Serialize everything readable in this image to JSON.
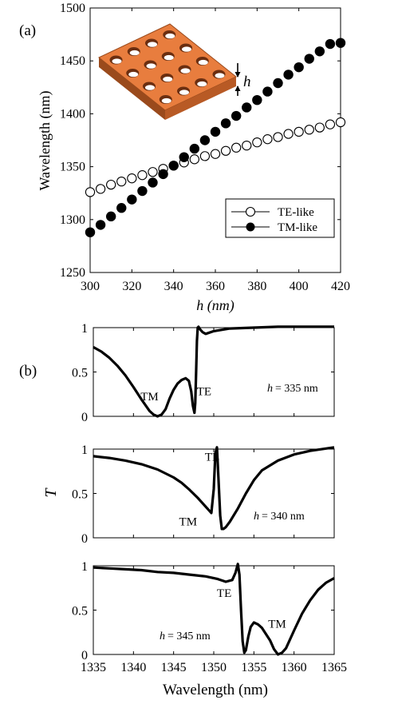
{
  "panel_labels": [
    "(a)",
    "(b)"
  ],
  "chart_data": [
    {
      "type": "scatter",
      "panel": "(a)",
      "xlabel": "h (nm)",
      "ylabel": "Wavelength (nm)",
      "xlim": [
        300,
        420
      ],
      "ylim": [
        1250,
        1500
      ],
      "xticks": [
        300,
        320,
        340,
        360,
        380,
        400,
        420
      ],
      "yticks": [
        1250,
        1300,
        1350,
        1400,
        1450,
        1500
      ],
      "legend_position": "bottom-right",
      "inset_label": "h",
      "series": [
        {
          "name": "TE-like",
          "marker": "open-circle",
          "x": [
            300,
            305,
            310,
            315,
            320,
            325,
            330,
            335,
            340,
            345,
            350,
            355,
            360,
            365,
            370,
            375,
            380,
            385,
            390,
            395,
            400,
            405,
            410,
            415,
            420
          ],
          "y": [
            1326,
            1329,
            1333,
            1336,
            1339,
            1342,
            1345,
            1348,
            1351,
            1354,
            1357,
            1360,
            1362,
            1365,
            1368,
            1370,
            1373,
            1376,
            1378,
            1381,
            1383,
            1385,
            1387,
            1390,
            1392
          ]
        },
        {
          "name": "TM-like",
          "marker": "filled-circle",
          "x": [
            300,
            305,
            310,
            315,
            320,
            325,
            330,
            335,
            340,
            345,
            350,
            355,
            360,
            365,
            370,
            375,
            380,
            385,
            390,
            395,
            400,
            405,
            410,
            415,
            420
          ],
          "y": [
            1288,
            1295,
            1303,
            1311,
            1319,
            1327,
            1335,
            1343,
            1351,
            1359,
            1367,
            1375,
            1383,
            1391,
            1398,
            1406,
            1413,
            1421,
            1429,
            1437,
            1444,
            1452,
            1459,
            1466,
            1467
          ]
        }
      ]
    },
    {
      "type": "line",
      "panel": "(b)",
      "ylabel": "T",
      "xlim": [
        1335,
        1365
      ],
      "ylim": [
        0,
        1
      ],
      "yticks": [
        0,
        0.5,
        1
      ],
      "annotation_prefix": "h",
      "annotation_value": "= 335 nm",
      "labels": [
        {
          "text": "TM",
          "x": 1342.0,
          "y": 0.18
        },
        {
          "text": "TE",
          "x": 1348.8,
          "y": 0.24
        }
      ],
      "x": [
        1335,
        1336,
        1337,
        1338,
        1339,
        1340,
        1341,
        1342,
        1342.5,
        1343,
        1343.5,
        1344,
        1344.5,
        1345,
        1345.5,
        1346,
        1346.5,
        1346.9,
        1347.2,
        1347.4,
        1347.6,
        1347.7,
        1347.8,
        1347.9,
        1348,
        1348.1,
        1348.3,
        1348.6,
        1349,
        1350,
        1352,
        1355,
        1358,
        1361,
        1365
      ],
      "y": [
        0.78,
        0.73,
        0.66,
        0.57,
        0.46,
        0.33,
        0.19,
        0.06,
        0.02,
        0.0,
        0.02,
        0.08,
        0.2,
        0.3,
        0.37,
        0.41,
        0.43,
        0.4,
        0.28,
        0.12,
        0.04,
        0.15,
        0.5,
        0.85,
        1.0,
        1.01,
        0.98,
        0.95,
        0.93,
        0.96,
        0.99,
        1.0,
        1.01,
        1.01,
        1.01
      ]
    },
    {
      "type": "line",
      "panel": "(b)",
      "ylabel": "T",
      "xlim": [
        1335,
        1365
      ],
      "ylim": [
        0,
        1
      ],
      "yticks": [
        0,
        0.5,
        1
      ],
      "annotation_prefix": "h",
      "annotation_value": "= 340 nm",
      "labels": [
        {
          "text": "TE",
          "x": 1349.8,
          "y": 0.87
        },
        {
          "text": "TM",
          "x": 1346.8,
          "y": 0.14
        }
      ],
      "x": [
        1335,
        1337,
        1339,
        1341,
        1343,
        1345,
        1346,
        1347,
        1348,
        1349,
        1349.7,
        1350.0,
        1350.2,
        1350.4,
        1350.6,
        1350.8,
        1351,
        1351.2,
        1351.5,
        1352,
        1353,
        1354,
        1355,
        1356,
        1358,
        1360,
        1362,
        1365
      ],
      "y": [
        0.92,
        0.9,
        0.87,
        0.83,
        0.77,
        0.68,
        0.62,
        0.54,
        0.45,
        0.35,
        0.28,
        0.55,
        0.95,
        1.02,
        0.65,
        0.25,
        0.1,
        0.1,
        0.12,
        0.18,
        0.33,
        0.5,
        0.65,
        0.76,
        0.87,
        0.94,
        0.98,
        1.02
      ]
    },
    {
      "type": "line",
      "panel": "(b)",
      "xlabel": "Wavelength (nm)",
      "ylabel": "T",
      "xlim": [
        1335,
        1365
      ],
      "ylim": [
        0,
        1
      ],
      "yticks": [
        0,
        0.5,
        1
      ],
      "xticks": [
        1335,
        1340,
        1345,
        1350,
        1355,
        1360,
        1365
      ],
      "annotation_prefix": "h",
      "annotation_value": "= 345 nm",
      "labels": [
        {
          "text": "TE",
          "x": 1351.3,
          "y": 0.65
        },
        {
          "text": "TM",
          "x": 1357.9,
          "y": 0.3
        }
      ],
      "x": [
        1335,
        1337,
        1339,
        1341,
        1343,
        1345,
        1347,
        1349,
        1350.5,
        1351.5,
        1352.3,
        1352.7,
        1353.0,
        1353.2,
        1353.4,
        1353.6,
        1353.8,
        1354.0,
        1354.3,
        1354.6,
        1355,
        1355.5,
        1356,
        1357,
        1357.5,
        1358,
        1358.5,
        1359,
        1360,
        1361,
        1362,
        1363,
        1364,
        1365
      ],
      "y": [
        0.98,
        0.97,
        0.96,
        0.95,
        0.93,
        0.92,
        0.9,
        0.88,
        0.85,
        0.82,
        0.84,
        0.92,
        1.02,
        0.9,
        0.5,
        0.15,
        0.02,
        0.05,
        0.2,
        0.31,
        0.36,
        0.34,
        0.3,
        0.16,
        0.06,
        0.0,
        0.02,
        0.07,
        0.27,
        0.46,
        0.61,
        0.73,
        0.81,
        0.86
      ]
    }
  ]
}
